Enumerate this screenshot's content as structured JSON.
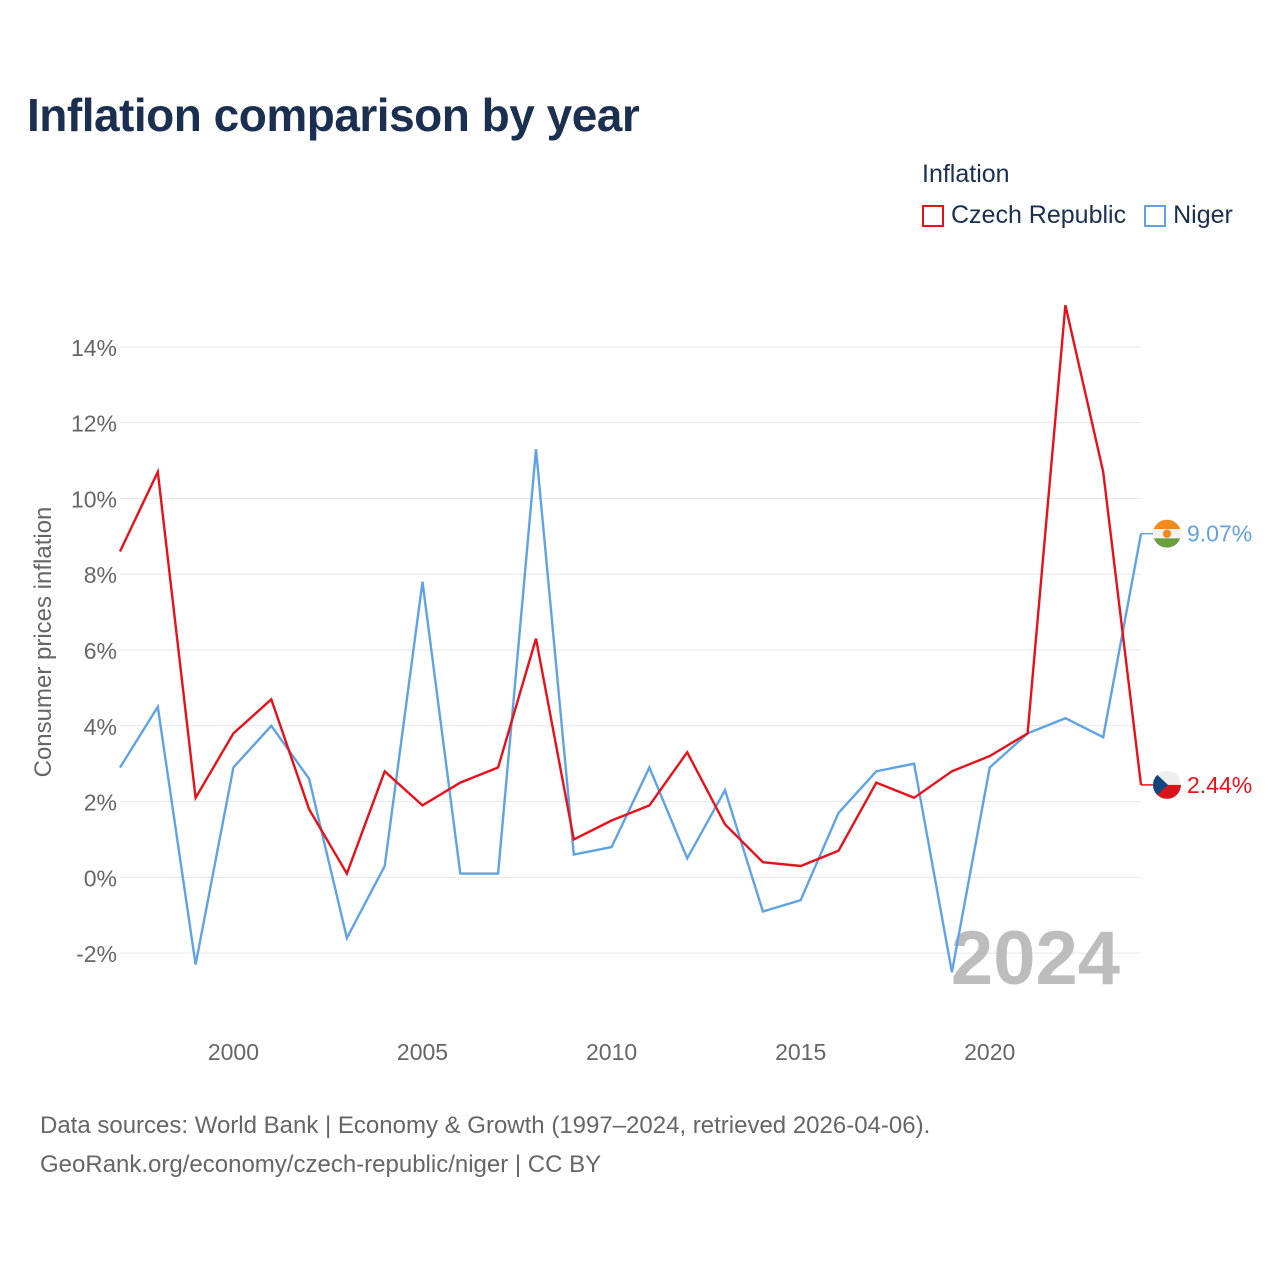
{
  "title": "Inflation comparison by year",
  "legend": {
    "title": "Inflation",
    "items": [
      {
        "label": "Czech Republic",
        "color": "#e8111a"
      },
      {
        "label": "Niger",
        "color": "#5fa3e4"
      }
    ]
  },
  "footer": {
    "line1": "Data sources: World Bank | Economy & Growth (1997–2024, retrieved 2026-04-06).",
    "line2": "GeoRank.org/economy/czech-republic/niger | CC BY"
  },
  "chart_data": {
    "type": "line",
    "title": "Inflation comparison by year",
    "xlabel": "",
    "ylabel": "Consumer prices inflation",
    "xlim": [
      1997,
      2024
    ],
    "ylim": [
      -3.5,
      15.5
    ],
    "grid": true,
    "year_watermark": "2024",
    "x_ticks": [
      {
        "value": 2000,
        "label": "2000"
      },
      {
        "value": 2005,
        "label": "2005"
      },
      {
        "value": 2010,
        "label": "2010"
      },
      {
        "value": 2015,
        "label": "2015"
      },
      {
        "value": 2020,
        "label": "2020"
      }
    ],
    "y_ticks": [
      {
        "value": -2,
        "label": "-2%"
      },
      {
        "value": 0,
        "label": "0%"
      },
      {
        "value": 2,
        "label": "2%"
      },
      {
        "value": 4,
        "label": "4%"
      },
      {
        "value": 6,
        "label": "6%"
      },
      {
        "value": 8,
        "label": "8%"
      },
      {
        "value": 10,
        "label": "10%"
      },
      {
        "value": 12,
        "label": "12%"
      },
      {
        "value": 14,
        "label": "14%"
      }
    ],
    "x": [
      1997,
      1998,
      1999,
      2000,
      2001,
      2002,
      2003,
      2004,
      2005,
      2006,
      2007,
      2008,
      2009,
      2010,
      2011,
      2012,
      2013,
      2014,
      2015,
      2016,
      2017,
      2018,
      2019,
      2020,
      2021,
      2022,
      2023,
      2024
    ],
    "series": [
      {
        "name": "Czech Republic",
        "color": "#e8111a",
        "end_label": "2.44%",
        "flag": "czech-republic",
        "values": [
          8.6,
          10.7,
          2.1,
          3.8,
          4.7,
          1.8,
          0.1,
          2.8,
          1.9,
          2.5,
          2.9,
          6.3,
          1.0,
          1.5,
          1.9,
          3.3,
          1.4,
          0.4,
          0.3,
          0.7,
          2.5,
          2.1,
          2.8,
          3.2,
          3.8,
          15.1,
          10.7,
          2.44
        ]
      },
      {
        "name": "Niger",
        "color": "#5fa3e4",
        "end_label": "9.07%",
        "flag": "niger",
        "values": [
          2.9,
          4.5,
          -2.3,
          2.9,
          4.0,
          2.6,
          -1.6,
          0.3,
          7.8,
          0.1,
          0.1,
          11.3,
          0.6,
          0.8,
          2.9,
          0.5,
          2.3,
          -0.9,
          -0.6,
          1.7,
          2.8,
          3.0,
          -2.5,
          2.9,
          3.8,
          4.2,
          3.7,
          9.07
        ]
      }
    ]
  }
}
